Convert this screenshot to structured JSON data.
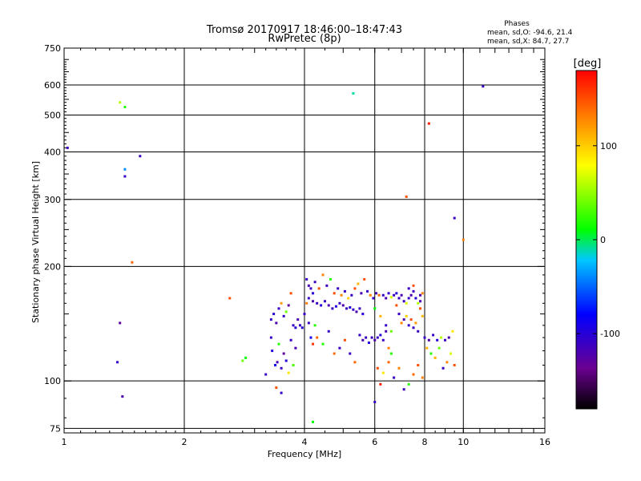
{
  "chart_data": {
    "type": "scatter",
    "title": "Tromsø 20170917 18:46:00–18:47:43",
    "subtitle": "RwPretec (8p)",
    "xlabel": "Frequency [MHz]",
    "ylabel": "Stationary phase Virtual Height [km]",
    "x_scale": "log2",
    "y_scale": "log",
    "xlim": [
      1,
      16
    ],
    "ylim": [
      73,
      750
    ],
    "x_ticks": [
      1,
      2,
      4,
      6,
      8,
      10,
      16
    ],
    "x_tick_labels": [
      "1",
      "2",
      "4",
      "6",
      "8",
      "10",
      "16"
    ],
    "y_ticks": [
      75,
      100,
      200,
      300,
      400,
      500,
      600,
      750
    ],
    "y_tick_labels": [
      "75",
      "100",
      "200",
      "300",
      "400",
      "500",
      "600",
      "750"
    ],
    "grid": true,
    "stats": {
      "header": "Phases",
      "line1": "mean, sd,O:  -94.6, 21.4",
      "line2": "mean, sd,X:   84.7, 27.7"
    },
    "colorbar": {
      "label": "[deg]",
      "range": [
        -180,
        180
      ],
      "tick_values": [
        100,
        0,
        -100
      ],
      "tick_labels": [
        "100",
        "0",
        "-100"
      ]
    },
    "points": [
      [
        1.02,
        410,
        -110
      ],
      [
        1.38,
        540,
        60
      ],
      [
        1.42,
        525,
        20
      ],
      [
        1.42,
        360,
        -40
      ],
      [
        1.42,
        345,
        -110
      ],
      [
        1.55,
        390,
        -110
      ],
      [
        1.48,
        205,
        140
      ],
      [
        1.38,
        142,
        -130
      ],
      [
        1.36,
        112,
        -110
      ],
      [
        1.4,
        91,
        -120
      ],
      [
        5.3,
        570,
        -10
      ],
      [
        8.2,
        475,
        170
      ],
      [
        11.2,
        595,
        -110
      ],
      [
        7.2,
        305,
        150
      ],
      [
        9.5,
        268,
        -110
      ],
      [
        10.0,
        235,
        130
      ],
      [
        2.6,
        165,
        150
      ],
      [
        2.8,
        113,
        40
      ],
      [
        2.85,
        115,
        10
      ],
      [
        3.2,
        104,
        -110
      ],
      [
        3.4,
        96,
        150
      ],
      [
        3.5,
        93,
        -110
      ],
      [
        4.2,
        78,
        10
      ],
      [
        3.3,
        130,
        -110
      ],
      [
        3.32,
        120,
        -100
      ],
      [
        3.38,
        110,
        -90
      ],
      [
        3.42,
        112,
        -120
      ],
      [
        3.45,
        125,
        20
      ],
      [
        3.5,
        108,
        -110
      ],
      [
        3.55,
        118,
        -130
      ],
      [
        3.6,
        113,
        -100
      ],
      [
        3.65,
        105,
        90
      ],
      [
        3.7,
        128,
        -110
      ],
      [
        3.75,
        110,
        30
      ],
      [
        3.8,
        122,
        -120
      ],
      [
        3.3,
        145,
        -110
      ],
      [
        3.35,
        150,
        -100
      ],
      [
        3.4,
        142,
        -120
      ],
      [
        3.45,
        155,
        -110
      ],
      [
        3.5,
        160,
        120
      ],
      [
        3.55,
        148,
        -110
      ],
      [
        3.6,
        152,
        40
      ],
      [
        3.65,
        158,
        -130
      ],
      [
        3.7,
        170,
        150
      ],
      [
        3.75,
        140,
        -110
      ],
      [
        3.8,
        138,
        -100
      ],
      [
        3.85,
        145,
        -120
      ],
      [
        3.9,
        140,
        -110
      ],
      [
        3.95,
        138,
        -100
      ],
      [
        4.0,
        150,
        -110
      ],
      [
        4.05,
        160,
        130
      ],
      [
        4.1,
        142,
        -110
      ],
      [
        4.15,
        130,
        -90
      ],
      [
        4.2,
        125,
        160
      ],
      [
        4.25,
        140,
        20
      ],
      [
        4.05,
        185,
        -110
      ],
      [
        4.1,
        178,
        -120
      ],
      [
        4.15,
        175,
        -110
      ],
      [
        4.2,
        170,
        -100
      ],
      [
        4.1,
        165,
        -110
      ],
      [
        4.2,
        162,
        -120
      ],
      [
        4.3,
        160,
        -110
      ],
      [
        4.4,
        158,
        -100
      ],
      [
        4.5,
        162,
        -110
      ],
      [
        4.6,
        158,
        -120
      ],
      [
        4.7,
        155,
        -110
      ],
      [
        4.8,
        157,
        -100
      ],
      [
        4.9,
        160,
        -110
      ],
      [
        5.0,
        158,
        -120
      ],
      [
        5.1,
        155,
        -110
      ],
      [
        5.2,
        156,
        -100
      ],
      [
        5.3,
        154,
        -110
      ],
      [
        5.4,
        152,
        -120
      ],
      [
        5.5,
        155,
        -110
      ],
      [
        5.6,
        150,
        -100
      ],
      [
        4.25,
        182,
        -110
      ],
      [
        4.35,
        175,
        150
      ],
      [
        4.45,
        190,
        130
      ],
      [
        4.55,
        178,
        -110
      ],
      [
        4.65,
        185,
        20
      ],
      [
        4.75,
        170,
        150
      ],
      [
        4.85,
        175,
        -110
      ],
      [
        4.95,
        168,
        130
      ],
      [
        5.05,
        172,
        -110
      ],
      [
        5.15,
        165,
        100
      ],
      [
        5.25,
        168,
        -110
      ],
      [
        5.35,
        175,
        150
      ],
      [
        5.45,
        180,
        110
      ],
      [
        5.55,
        170,
        -120
      ],
      [
        5.65,
        185,
        150
      ],
      [
        5.75,
        172,
        -110
      ],
      [
        5.85,
        168,
        130
      ],
      [
        5.95,
        165,
        -110
      ],
      [
        6.05,
        170,
        -120
      ],
      [
        6.15,
        168,
        140
      ],
      [
        4.3,
        130,
        140
      ],
      [
        4.45,
        125,
        20
      ],
      [
        4.6,
        135,
        -110
      ],
      [
        4.75,
        118,
        140
      ],
      [
        4.9,
        122,
        -110
      ],
      [
        5.05,
        128,
        150
      ],
      [
        5.2,
        118,
        -110
      ],
      [
        5.35,
        112,
        140
      ],
      [
        5.5,
        132,
        -110
      ],
      [
        5.6,
        128,
        -120
      ],
      [
        5.7,
        130,
        -110
      ],
      [
        5.8,
        126,
        -100
      ],
      [
        5.9,
        130,
        -110
      ],
      [
        6.0,
        128,
        -120
      ],
      [
        6.1,
        130,
        -110
      ],
      [
        6.2,
        132,
        -100
      ],
      [
        6.3,
        128,
        -110
      ],
      [
        6.4,
        135,
        -120
      ],
      [
        6.5,
        122,
        130
      ],
      [
        6.6,
        118,
        20
      ],
      [
        6.3,
        168,
        -110
      ],
      [
        6.4,
        165,
        -120
      ],
      [
        6.5,
        170,
        -110
      ],
      [
        6.6,
        166,
        70
      ],
      [
        6.7,
        168,
        -110
      ],
      [
        6.8,
        170,
        -100
      ],
      [
        6.9,
        165,
        -110
      ],
      [
        7.0,
        168,
        -120
      ],
      [
        7.1,
        162,
        -110
      ],
      [
        7.2,
        160,
        70
      ],
      [
        7.3,
        165,
        -110
      ],
      [
        7.4,
        168,
        -120
      ],
      [
        7.5,
        172,
        -110
      ],
      [
        7.6,
        165,
        -100
      ],
      [
        7.7,
        160,
        60
      ],
      [
        7.8,
        168,
        -120
      ],
      [
        6.8,
        158,
        150
      ],
      [
        6.9,
        150,
        -110
      ],
      [
        7.0,
        142,
        130
      ],
      [
        7.1,
        145,
        -120
      ],
      [
        7.2,
        148,
        100
      ],
      [
        7.3,
        140,
        -110
      ],
      [
        7.4,
        145,
        150
      ],
      [
        7.5,
        138,
        -110
      ],
      [
        7.6,
        142,
        120
      ],
      [
        7.7,
        135,
        -110
      ],
      [
        7.8,
        155,
        150
      ],
      [
        7.9,
        148,
        110
      ],
      [
        8.0,
        130,
        -110
      ],
      [
        8.2,
        128,
        -120
      ],
      [
        8.4,
        132,
        -110
      ],
      [
        8.6,
        128,
        -100
      ],
      [
        8.8,
        130,
        60
      ],
      [
        9.0,
        128,
        -110
      ],
      [
        9.2,
        130,
        -120
      ],
      [
        9.4,
        135,
        90
      ],
      [
        8.1,
        122,
        110
      ],
      [
        8.3,
        118,
        20
      ],
      [
        8.5,
        115,
        110
      ],
      [
        8.7,
        122,
        40
      ],
      [
        8.9,
        108,
        -110
      ],
      [
        9.1,
        112,
        130
      ],
      [
        9.3,
        118,
        70
      ],
      [
        9.5,
        110,
        150
      ],
      [
        6.1,
        108,
        150
      ],
      [
        6.3,
        105,
        90
      ],
      [
        6.5,
        112,
        140
      ],
      [
        6.7,
        102,
        -110
      ],
      [
        6.9,
        108,
        130
      ],
      [
        7.1,
        95,
        -110
      ],
      [
        7.3,
        98,
        20
      ],
      [
        7.5,
        104,
        140
      ],
      [
        7.7,
        110,
        150
      ],
      [
        7.9,
        102,
        130
      ],
      [
        6.0,
        88,
        -110
      ],
      [
        6.2,
        98,
        170
      ],
      [
        6.0,
        155,
        10
      ],
      [
        6.2,
        148,
        110
      ],
      [
        6.4,
        140,
        -110
      ],
      [
        6.6,
        135,
        40
      ],
      [
        7.3,
        175,
        -110
      ],
      [
        7.5,
        178,
        150
      ],
      [
        7.8,
        162,
        -120
      ],
      [
        7.9,
        170,
        130
      ]
    ]
  }
}
